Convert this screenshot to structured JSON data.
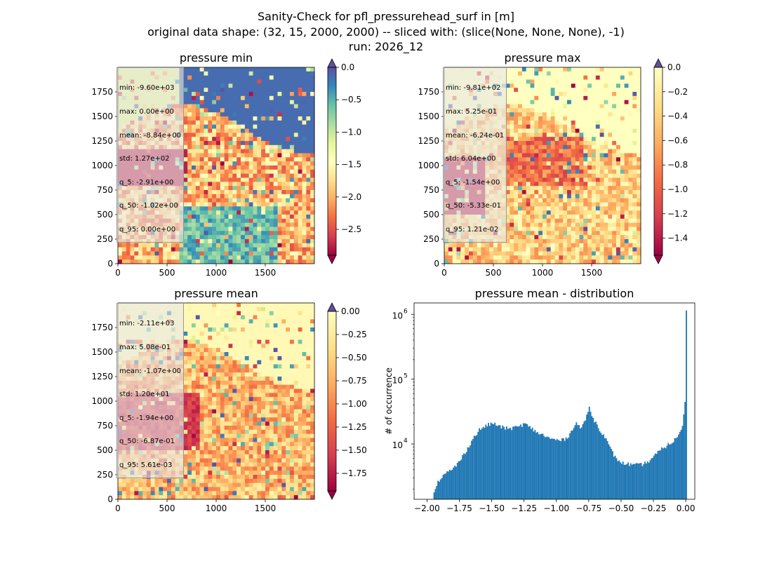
{
  "figure": {
    "title_lines": [
      "Sanity-Check for pfl_pressurehead_surf in [m]",
      "original data shape: (32, 15, 2000, 2000) -- sliced with: (slice(None, None, None), -1)",
      "run: 2026_12"
    ]
  },
  "colormap": "Spectral",
  "colors": {
    "hist_bar": "#1f77b4",
    "stats_box": "#e6e6e6"
  },
  "chart_data": [
    {
      "id": "pressure-min",
      "type": "heatmap",
      "title": "pressure min",
      "x_ticks": [
        0,
        500,
        1000,
        1500
      ],
      "y_ticks": [
        0,
        250,
        500,
        750,
        1000,
        1250,
        1500,
        1750
      ],
      "xlim": [
        0,
        2000
      ],
      "ylim": [
        0,
        2000
      ],
      "colorbar": {
        "vmin": -2.9,
        "vmax": 0.0,
        "ticks": [
          0.0,
          -0.5,
          -1.0,
          -1.5,
          -2.0,
          -2.5
        ],
        "tick_labels": [
          "0.0",
          "−0.5",
          "−1.0",
          "−1.5",
          "−2.0",
          "−2.5"
        ],
        "extend": "both"
      },
      "stats": [
        "min: -9.60e+03",
        "max: 0.00e+00",
        "mean: -8.84e+00",
        "std: 1.27e+02",
        "q_5: -2.91e+00",
        "q_50: -1.02e+00",
        "q_95: 0.00e+00"
      ]
    },
    {
      "id": "pressure-max",
      "type": "heatmap",
      "title": "pressure max",
      "x_ticks": [
        0,
        500,
        1000,
        1500
      ],
      "y_ticks": [
        0,
        250,
        500,
        750,
        1000,
        1250,
        1500,
        1750
      ],
      "xlim": [
        0,
        2000
      ],
      "ylim": [
        0,
        2000
      ],
      "colorbar": {
        "vmin": -1.54,
        "vmax": 0.0,
        "ticks": [
          0.0,
          -0.2,
          -0.4,
          -0.6,
          -0.8,
          -1.0,
          -1.2,
          -1.4
        ],
        "tick_labels": [
          "0.0",
          "−0.2",
          "−0.4",
          "−0.6",
          "−0.8",
          "−1.0",
          "−1.2",
          "−1.4"
        ],
        "extend": "both"
      },
      "stats": [
        "min: -9.81e+02",
        "max: 5.25e-01",
        "mean: -6.24e-01",
        "std: 6.04e+00",
        "q_5: -1.54e+00",
        "q_50: -5.33e-01",
        "q_95: 1.21e-02"
      ]
    },
    {
      "id": "pressure-mean",
      "type": "heatmap",
      "title": "pressure mean",
      "x_ticks": [
        0,
        500,
        1000,
        1500
      ],
      "y_ticks": [
        0,
        250,
        500,
        750,
        1000,
        1250,
        1500,
        1750
      ],
      "xlim": [
        0,
        2000
      ],
      "ylim": [
        0,
        2000
      ],
      "colorbar": {
        "vmin": -1.94,
        "vmax": 0.0,
        "ticks": [
          0.0,
          -0.25,
          -0.5,
          -0.75,
          -1.0,
          -1.25,
          -1.5,
          -1.75
        ],
        "tick_labels": [
          "0.00",
          "−0.25",
          "−0.50",
          "−0.75",
          "−1.00",
          "−1.25",
          "−1.50",
          "−1.75"
        ],
        "extend": "both"
      },
      "stats": [
        "min: -2.11e+03",
        "max: 5.08e-01",
        "mean: -1.07e+00",
        "std: 1.20e+01",
        "q_5: -1.94e+00",
        "q_50: -6.87e-01",
        "q_95: 5.61e-03"
      ]
    },
    {
      "id": "pressure-mean-distribution",
      "type": "bar",
      "title": "pressure mean - distribution",
      "ylabel": "# of occurrence",
      "y_scale": "log",
      "xlim": [
        -2.1,
        0.07
      ],
      "ylim": [
        1400,
        1500000
      ],
      "x_ticks": [
        -2.0,
        -1.75,
        -1.5,
        -1.25,
        -1.0,
        -0.75,
        -0.5,
        -0.25,
        0.0
      ],
      "x_tick_labels": [
        "−2.00",
        "−1.75",
        "−1.50",
        "−1.25",
        "−1.00",
        "−0.75",
        "−0.50",
        "−0.25",
        "0.00"
      ],
      "y_ticks": [
        10000,
        100000,
        1000000
      ],
      "y_tick_labels": [
        "10",
        "10",
        "10"
      ],
      "y_tick_exponents": [
        "4",
        "5",
        "6"
      ],
      "bin_start": -1.95,
      "bin_width": 0.01,
      "counts_anchor": [
        [
          -1.95,
          1800
        ],
        [
          -1.93,
          2400
        ],
        [
          -1.9,
          3000
        ],
        [
          -1.85,
          3600
        ],
        [
          -1.8,
          4200
        ],
        [
          -1.75,
          5500
        ],
        [
          -1.7,
          8000
        ],
        [
          -1.65,
          12000
        ],
        [
          -1.6,
          16500
        ],
        [
          -1.55,
          19000
        ],
        [
          -1.5,
          21000
        ],
        [
          -1.45,
          19000
        ],
        [
          -1.4,
          17500
        ],
        [
          -1.35,
          17500
        ],
        [
          -1.3,
          18500
        ],
        [
          -1.25,
          20500
        ],
        [
          -1.2,
          17500
        ],
        [
          -1.15,
          15000
        ],
        [
          -1.1,
          13500
        ],
        [
          -1.05,
          12000
        ],
        [
          -1.0,
          11500
        ],
        [
          -0.95,
          11500
        ],
        [
          -0.9,
          14000
        ],
        [
          -0.87,
          19000
        ],
        [
          -0.85,
          21500
        ],
        [
          -0.82,
          17500
        ],
        [
          -0.79,
          21000
        ],
        [
          -0.75,
          36000
        ],
        [
          -0.72,
          25000
        ],
        [
          -0.68,
          18000
        ],
        [
          -0.63,
          13000
        ],
        [
          -0.6,
          9500
        ],
        [
          -0.55,
          6200
        ],
        [
          -0.5,
          5100
        ],
        [
          -0.45,
          4900
        ],
        [
          -0.4,
          4700
        ],
        [
          -0.35,
          4800
        ],
        [
          -0.3,
          5200
        ],
        [
          -0.25,
          6500
        ],
        [
          -0.2,
          8000
        ],
        [
          -0.15,
          9500
        ],
        [
          -0.1,
          11000
        ],
        [
          -0.05,
          14500
        ],
        [
          -0.03,
          20000
        ],
        [
          -0.02,
          30000
        ],
        [
          -0.01,
          43000
        ],
        [
          0.0,
          1150000
        ]
      ]
    }
  ]
}
